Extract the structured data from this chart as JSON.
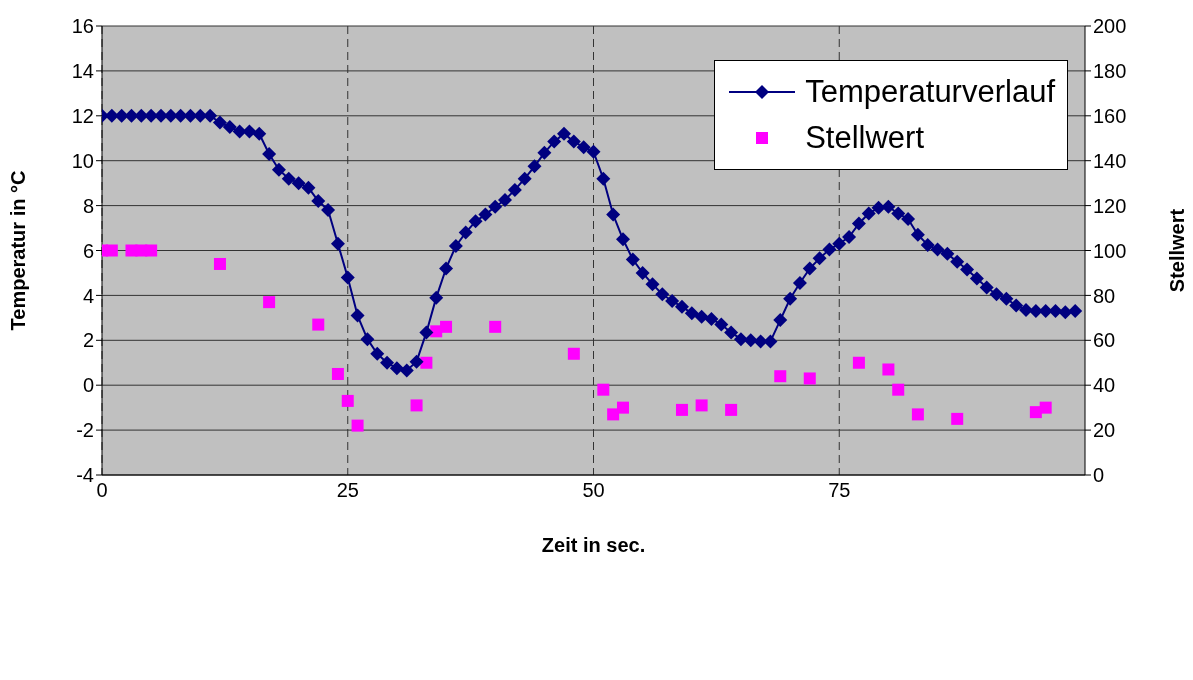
{
  "chart_data": {
    "type": "line",
    "xlabel": "Zeit in sec.",
    "ylabel": "Temperatur in  °C",
    "y2label": "Stellwert",
    "x": [
      0,
      1,
      2,
      3,
      4,
      5,
      6,
      7,
      8,
      9,
      10,
      11,
      12,
      13,
      14,
      15,
      16,
      17,
      18,
      19,
      20,
      21,
      22,
      23,
      24,
      25,
      26,
      27,
      28,
      29,
      30,
      31,
      32,
      33,
      34,
      35,
      36,
      37,
      38,
      39,
      40,
      41,
      42,
      43,
      44,
      45,
      46,
      47,
      48,
      49,
      50,
      51,
      52,
      53,
      54,
      55,
      56,
      57,
      58,
      59,
      60,
      61,
      62,
      63,
      64,
      65,
      66,
      67,
      68,
      69,
      70,
      71,
      72,
      73,
      74,
      75,
      76,
      77,
      78,
      79,
      80,
      81,
      82,
      83,
      84,
      85,
      86,
      87,
      88,
      89,
      90,
      91,
      92,
      93,
      94,
      95,
      96,
      97,
      98,
      99
    ],
    "series": [
      {
        "name": "Temperaturverlauf",
        "color": "#000080",
        "marker": "diamond",
        "line_style": "solid",
        "values": [
          12,
          12,
          12,
          12,
          12,
          12,
          12,
          12,
          12,
          12,
          12,
          12,
          11.7,
          11.5,
          11.3,
          11.3,
          11.2,
          10.3,
          9.6,
          9.2,
          9.0,
          8.8,
          8.2,
          7.8,
          6.3,
          4.8,
          3.1,
          2.05,
          1.4,
          1.0,
          0.75,
          0.65,
          1.05,
          2.35,
          3.9,
          5.2,
          6.2,
          6.8,
          7.3,
          7.6,
          7.95,
          8.25,
          8.7,
          9.2,
          9.75,
          10.35,
          10.85,
          11.2,
          10.85,
          10.6,
          10.4,
          9.2,
          7.6,
          6.5,
          5.6,
          5.0,
          4.5,
          4.05,
          3.75,
          3.5,
          3.2,
          3.05,
          2.95,
          2.7,
          2.35,
          2.05,
          2.0,
          1.95,
          1.95,
          2.9,
          3.85,
          4.55,
          5.2,
          5.65,
          6.05,
          6.3,
          6.6,
          7.2,
          7.65,
          7.9,
          7.95,
          7.65,
          7.4,
          6.7,
          6.25,
          6.05,
          5.85,
          5.5,
          5.15,
          4.75,
          4.35,
          4.05,
          3.85,
          3.55,
          3.35,
          3.3,
          3.3,
          3.3,
          3.25,
          3.3
        ]
      },
      {
        "name": "Stellwert",
        "type": "scatter",
        "axis": "y2",
        "color": "#ff00ff",
        "marker": "square",
        "x": [
          0,
          1,
          3,
          4,
          5,
          12,
          17,
          22,
          24,
          25,
          26,
          32,
          33,
          34,
          35,
          40,
          48,
          51,
          52,
          53,
          59,
          61,
          64,
          69,
          72,
          77,
          80,
          81,
          83,
          87,
          95,
          96
        ],
        "values": [
          100,
          100,
          100,
          100,
          100,
          94,
          77,
          67,
          45,
          33,
          22,
          31,
          50,
          64,
          66,
          66,
          54,
          38,
          27,
          30,
          29,
          31,
          29,
          44,
          43,
          50,
          47,
          38,
          27,
          25,
          28,
          30
        ]
      }
    ],
    "xlim": [
      0,
      100
    ],
    "xticks": [
      0,
      25,
      50,
      75
    ],
    "ylim": [
      -4,
      16
    ],
    "yticks": [
      -4,
      -2,
      0,
      2,
      4,
      6,
      8,
      10,
      12,
      14,
      16
    ],
    "y2lim": [
      0,
      200
    ],
    "y2ticks": [
      0,
      20,
      40,
      60,
      80,
      100,
      120,
      140,
      160,
      180,
      200
    ],
    "grid": true,
    "legend": "top right"
  }
}
